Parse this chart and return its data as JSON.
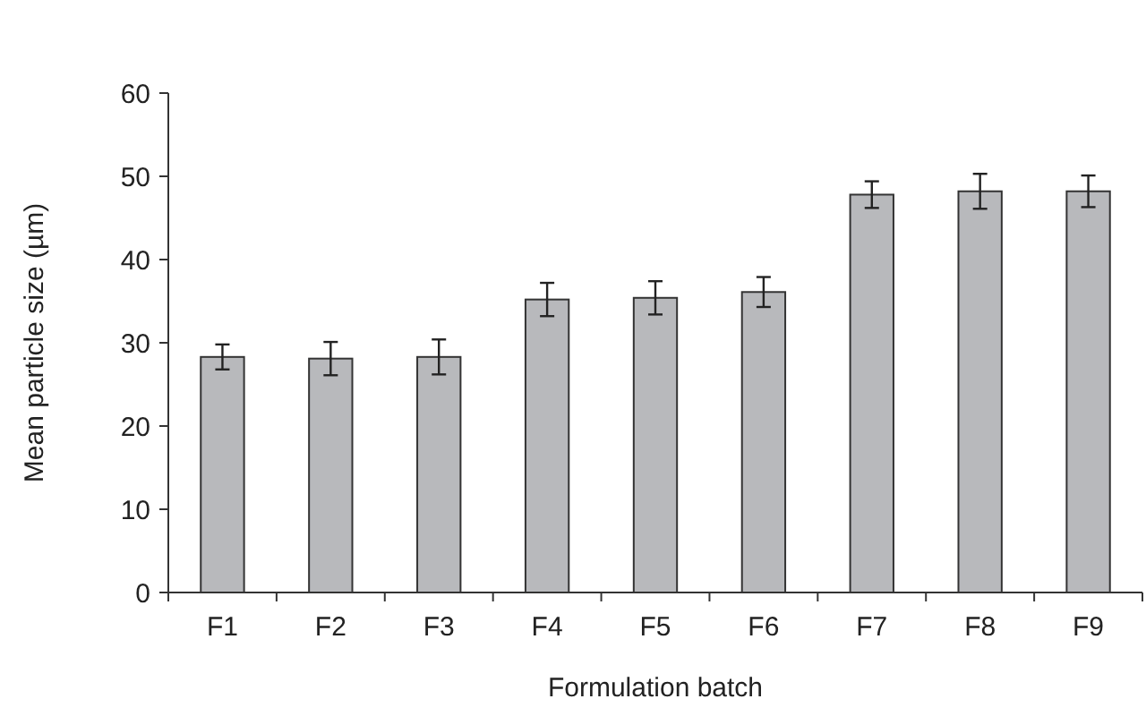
{
  "chart_data": {
    "type": "bar",
    "xlabel": "Formulation batch",
    "ylabel": "Mean particle size (µm)",
    "categories": [
      "F1",
      "F2",
      "F3",
      "F4",
      "F5",
      "F6",
      "F7",
      "F8",
      "F9"
    ],
    "values": [
      28.3,
      28.1,
      28.3,
      35.2,
      35.4,
      36.1,
      47.8,
      48.2,
      48.2
    ],
    "errors": [
      1.5,
      2.0,
      2.1,
      2.0,
      2.0,
      1.8,
      1.6,
      2.1,
      1.9
    ],
    "color": "#b8b9bc",
    "ylim": [
      0,
      60
    ],
    "yticks": [
      0,
      10,
      20,
      30,
      40,
      50,
      60
    ],
    "grid": false
  }
}
